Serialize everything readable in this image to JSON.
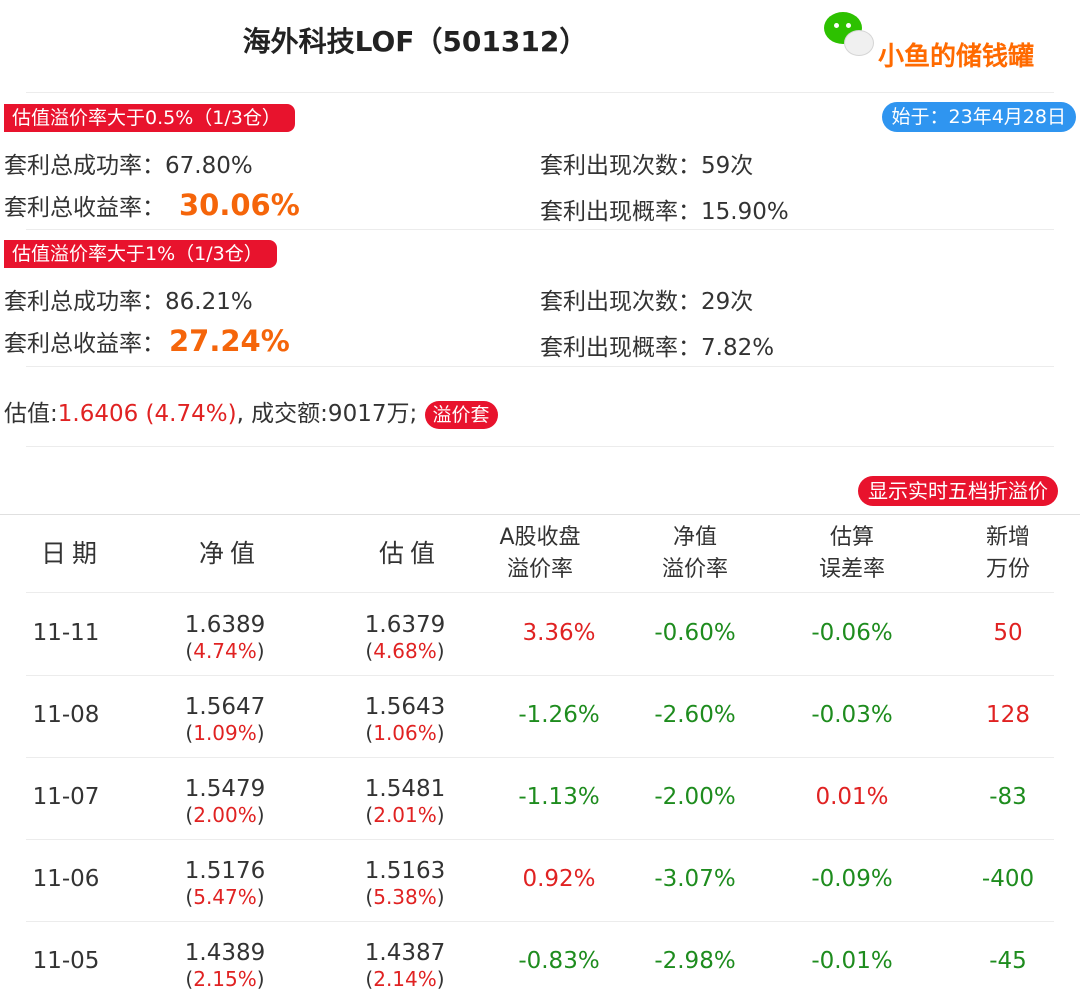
{
  "header": {
    "title": "海外科技LOF（501312）",
    "brand": "小鱼的储钱罐",
    "brand_icon": "wechat-icon"
  },
  "section1": {
    "tag": "估值溢价率大于0.5%（1/3仓）",
    "since": "始于：23年4月28日",
    "success_label": "套利总成功率：",
    "success_value": "67.80%",
    "count_label": "套利出现次数：",
    "count_value": "59次",
    "return_label": "套利总收益率：",
    "return_value": "30.06%",
    "prob_label": "套利出现概率：",
    "prob_value": "15.90%"
  },
  "section2": {
    "tag": "估值溢价率大于1%（1/3仓）",
    "success_label": "套利总成功率：",
    "success_value": "86.21%",
    "count_label": "套利出现次数：",
    "count_value": "29次",
    "return_label": "套利总收益率：",
    "return_value": "27.24%",
    "prob_label": "套利出现概率：",
    "prob_value": "7.82%"
  },
  "estimate": {
    "label": "估值:",
    "value": "1.6406",
    "change": "(4.74%)",
    "volume": ", 成交额:9017万;",
    "badge": "溢价套"
  },
  "realtime_button": "显示实时五档折溢价",
  "table": {
    "headers": [
      {
        "l1": "日期",
        "l2": ""
      },
      {
        "l1": "净值",
        "l2": ""
      },
      {
        "l1": "估值",
        "l2": ""
      },
      {
        "l1": "A股收盘",
        "l2": "溢价率"
      },
      {
        "l1": "净值",
        "l2": "溢价率"
      },
      {
        "l1": "估算",
        "l2": "误差率"
      },
      {
        "l1": "新增",
        "l2": "万份"
      }
    ],
    "rows": [
      {
        "date": "11-11",
        "nav": "1.6389",
        "nav_chg": "4.74%",
        "est": "1.6379",
        "est_chg": "4.68%",
        "a_premium": "3.36%",
        "nav_premium": "-0.60%",
        "error": "-0.06%",
        "new_shares": "50"
      },
      {
        "date": "11-08",
        "nav": "1.5647",
        "nav_chg": "1.09%",
        "est": "1.5643",
        "est_chg": "1.06%",
        "a_premium": "-1.26%",
        "nav_premium": "-2.60%",
        "error": "-0.03%",
        "new_shares": "128"
      },
      {
        "date": "11-07",
        "nav": "1.5479",
        "nav_chg": "2.00%",
        "est": "1.5481",
        "est_chg": "2.01%",
        "a_premium": "-1.13%",
        "nav_premium": "-2.00%",
        "error": "0.01%",
        "new_shares": "-83"
      },
      {
        "date": "11-06",
        "nav": "1.5176",
        "nav_chg": "5.47%",
        "est": "1.5163",
        "est_chg": "5.38%",
        "a_premium": "0.92%",
        "nav_premium": "-3.07%",
        "error": "-0.09%",
        "new_shares": "-400"
      },
      {
        "date": "11-05",
        "nav": "1.4389",
        "nav_chg": "2.15%",
        "est": "1.4387",
        "est_chg": "2.14%",
        "a_premium": "-0.83%",
        "nav_premium": "-2.98%",
        "error": "-0.01%",
        "new_shares": "-45"
      }
    ]
  },
  "colors": {
    "red": "#e02222",
    "green": "#1e8c1e",
    "orange": "#f5650a",
    "tag_red": "#e8132d",
    "tag_blue": "#2f95f0",
    "brand_orange": "#ff6a00"
  }
}
